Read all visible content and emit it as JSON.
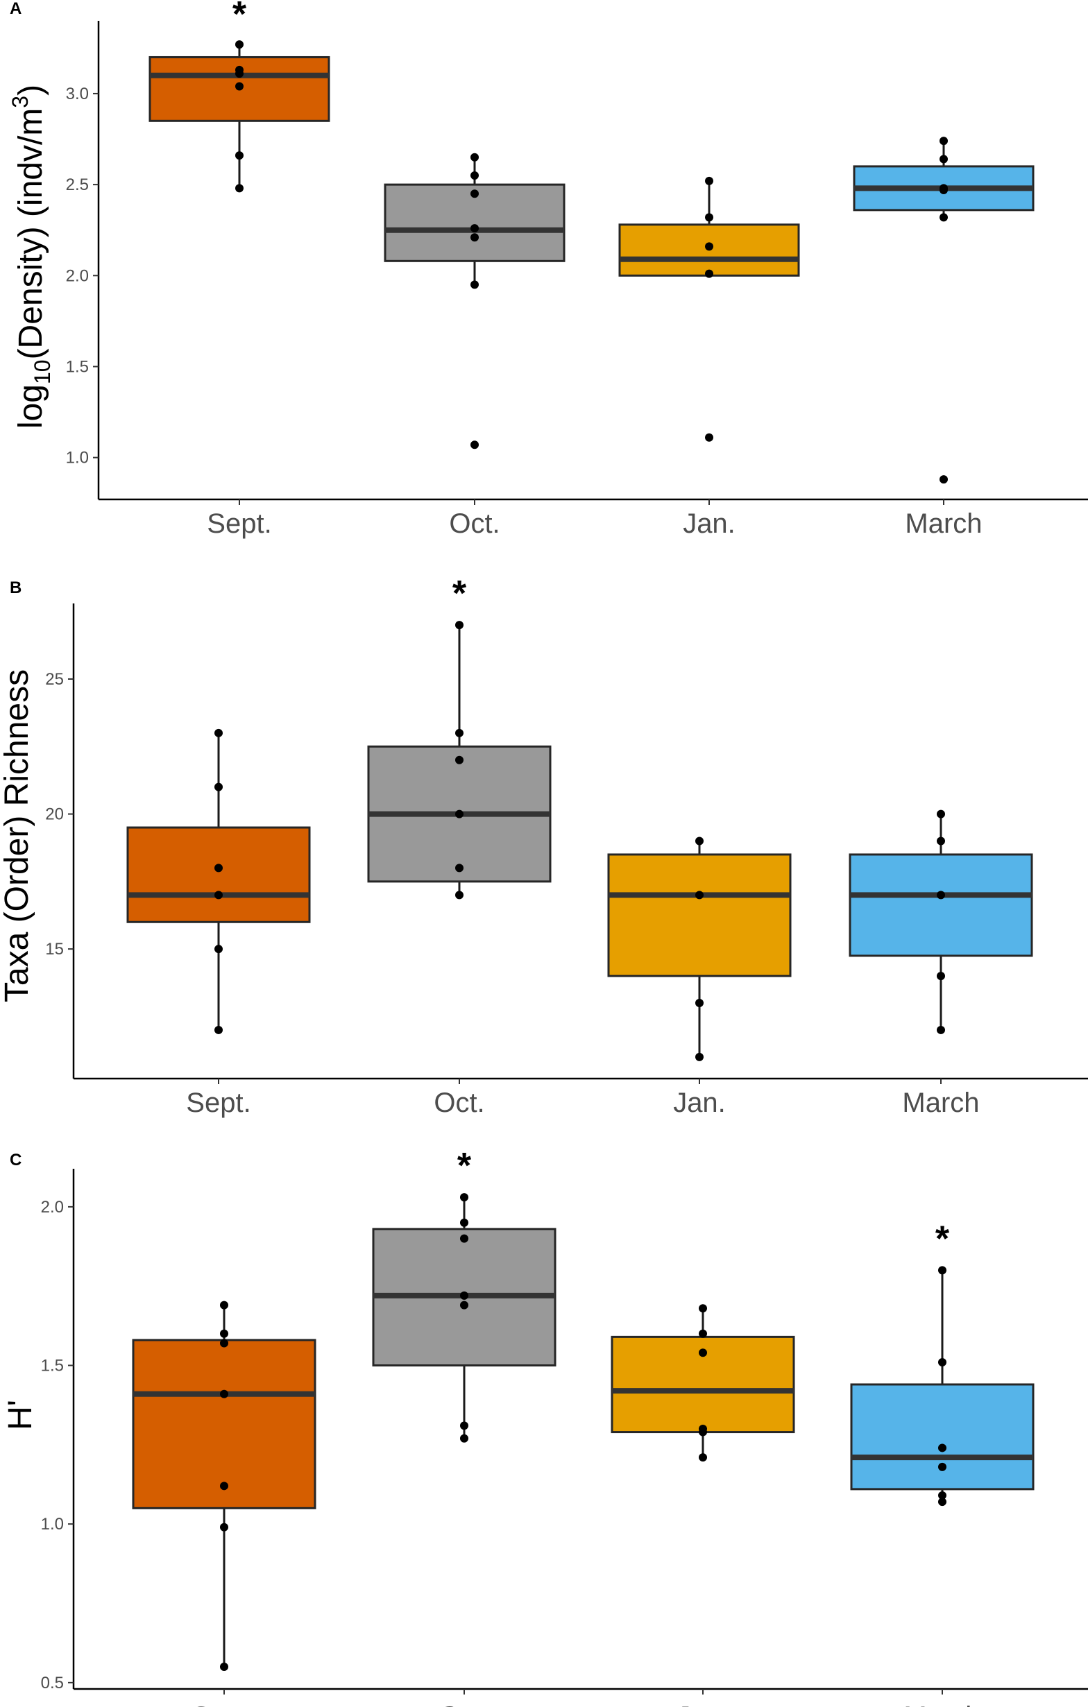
{
  "chart_data": [
    {
      "panel": "A",
      "type": "box",
      "ylabel": {
        "prefix": "log",
        "subscript": "10",
        "main": "(Density) (indv/m",
        "superscript": "3",
        "suffix": ")"
      },
      "ylim": [
        0.77,
        3.4
      ],
      "yticks": [
        1.0,
        1.5,
        2.0,
        2.5,
        3.0
      ],
      "ytick_labels": [
        "1.0",
        "1.5",
        "2.0",
        "2.5",
        "3.0"
      ],
      "categories": [
        "Sept.",
        "Oct.",
        "Jan.",
        "March"
      ],
      "colors": [
        "#D55E00",
        "#999999",
        "#E69F00",
        "#56B4E9"
      ],
      "boxes": [
        {
          "category": "Sept.",
          "q1": 2.85,
          "median": 3.1,
          "q3": 3.2,
          "whisker_low": 2.48,
          "whisker_high": 3.27,
          "points": [
            3.27,
            3.13,
            3.11,
            3.04,
            2.66,
            2.48
          ],
          "significant": true
        },
        {
          "category": "Oct.",
          "q1": 2.08,
          "median": 2.25,
          "q3": 2.5,
          "whisker_low": 1.95,
          "whisker_high": 2.65,
          "points": [
            2.65,
            2.55,
            2.45,
            2.26,
            2.21,
            1.95,
            1.07
          ],
          "significant": false
        },
        {
          "category": "Jan.",
          "q1": 2.0,
          "median": 2.09,
          "q3": 2.28,
          "whisker_low": 2.0,
          "whisker_high": 2.52,
          "points": [
            2.52,
            2.32,
            2.16,
            2.01,
            1.11
          ],
          "significant": false
        },
        {
          "category": "March",
          "q1": 2.36,
          "median": 2.48,
          "q3": 2.6,
          "whisker_low": 2.32,
          "whisker_high": 2.74,
          "points": [
            2.74,
            2.64,
            2.48,
            2.47,
            2.32,
            0.88
          ],
          "significant": false
        }
      ]
    },
    {
      "panel": "B",
      "type": "box",
      "ylabel": {
        "main": "Taxa (Order) Richness"
      },
      "ylim": [
        10.2,
        27.8
      ],
      "yticks": [
        15,
        20,
        25
      ],
      "ytick_labels": [
        "15",
        "20",
        "25"
      ],
      "categories": [
        "Sept.",
        "Oct.",
        "Jan.",
        "March"
      ],
      "colors": [
        "#D55E00",
        "#999999",
        "#E69F00",
        "#56B4E9"
      ],
      "boxes": [
        {
          "category": "Sept.",
          "q1": 16,
          "median": 17,
          "q3": 19.5,
          "whisker_low": 12,
          "whisker_high": 23,
          "points": [
            23,
            21,
            18,
            17,
            15,
            12
          ],
          "significant": false
        },
        {
          "category": "Oct.",
          "q1": 17.5,
          "median": 20,
          "q3": 22.5,
          "whisker_low": 17,
          "whisker_high": 27,
          "points": [
            27,
            23,
            22,
            20,
            18,
            17
          ],
          "significant": true
        },
        {
          "category": "Jan.",
          "q1": 14,
          "median": 17,
          "q3": 18.5,
          "whisker_low": 11,
          "whisker_high": 19,
          "points": [
            19,
            17,
            13,
            11
          ],
          "significant": false
        },
        {
          "category": "March",
          "q1": 14.75,
          "median": 17,
          "q3": 18.5,
          "whisker_low": 12,
          "whisker_high": 20,
          "points": [
            20,
            19,
            17,
            14,
            12
          ],
          "significant": false
        }
      ]
    },
    {
      "panel": "C",
      "type": "box",
      "ylabel": {
        "main": "H'"
      },
      "ylim": [
        0.48,
        2.12
      ],
      "yticks": [
        0.5,
        1.0,
        1.5,
        2.0
      ],
      "ytick_labels": [
        "0.5",
        "1.0",
        "1.5",
        "2.0"
      ],
      "categories": [
        "Sept.",
        "Oct.",
        "Jan.",
        "March"
      ],
      "colors": [
        "#D55E00",
        "#999999",
        "#E69F00",
        "#56B4E9"
      ],
      "boxes": [
        {
          "category": "Sept.",
          "q1": 1.05,
          "median": 1.41,
          "q3": 1.58,
          "whisker_low": 0.55,
          "whisker_high": 1.69,
          "points": [
            1.69,
            1.6,
            1.57,
            1.41,
            1.12,
            0.99,
            0.55
          ],
          "significant": false
        },
        {
          "category": "Oct.",
          "q1": 1.5,
          "median": 1.72,
          "q3": 1.93,
          "whisker_low": 1.27,
          "whisker_high": 2.03,
          "points": [
            2.03,
            1.95,
            1.9,
            1.72,
            1.69,
            1.31,
            1.27
          ],
          "significant": true
        },
        {
          "category": "Jan.",
          "q1": 1.29,
          "median": 1.42,
          "q3": 1.59,
          "whisker_low": 1.21,
          "whisker_high": 1.68,
          "points": [
            1.68,
            1.6,
            1.54,
            1.3,
            1.29,
            1.21
          ],
          "significant": false
        },
        {
          "category": "March",
          "q1": 1.11,
          "median": 1.21,
          "q3": 1.44,
          "whisker_low": 1.07,
          "whisker_high": 1.8,
          "points": [
            1.8,
            1.51,
            1.24,
            1.18,
            1.09,
            1.07
          ],
          "significant": true
        }
      ]
    }
  ],
  "significance_marker": "*"
}
